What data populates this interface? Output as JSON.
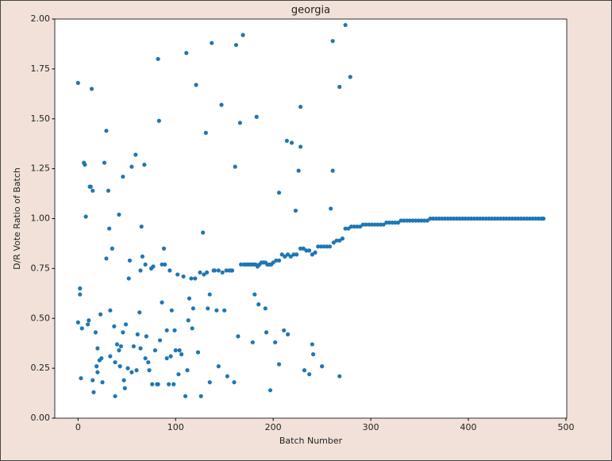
{
  "chart_data": {
    "type": "scatter",
    "title": "georgia",
    "xlabel": "Batch Number",
    "ylabel": "D/R Vote Ratio of Batch",
    "xlim": [
      -23.85,
      500.85
    ],
    "ylim": [
      0,
      2
    ],
    "xticks": [
      0,
      100,
      200,
      300,
      400,
      500
    ],
    "yticks": [
      {
        "value": 0,
        "label": "0.00"
      },
      {
        "value": 0.25,
        "label": "0.25"
      },
      {
        "value": 0.5,
        "label": "0.50"
      },
      {
        "value": 0.75,
        "label": "0.75"
      },
      {
        "value": 1,
        "label": "1.00"
      },
      {
        "value": 1.25,
        "label": "1.25"
      },
      {
        "value": 1.5,
        "label": "1.50"
      },
      {
        "value": 1.75,
        "label": "1.75"
      },
      {
        "value": 2,
        "label": "2.00"
      }
    ],
    "series": [
      {
        "color": "#1f77b4",
        "x": [
          0,
          2,
          2,
          0,
          3,
          4,
          6,
          7,
          8,
          10,
          11,
          12,
          13,
          14,
          15,
          15,
          16,
          18,
          19,
          20,
          20,
          22,
          23,
          24,
          25,
          27,
          29,
          29,
          31,
          32,
          33,
          33,
          35,
          37,
          38,
          38,
          40,
          42,
          42,
          43,
          44,
          46,
          46,
          47,
          48,
          49,
          51,
          52,
          53,
          55,
          55,
          57,
          59,
          60,
          61,
          63,
          64,
          64,
          65,
          66,
          68,
          69,
          69,
          70,
          72,
          73,
          75,
          76,
          77,
          79,
          81,
          82,
          82,
          83,
          84,
          86,
          86,
          88,
          89,
          91,
          91,
          93,
          94,
          95,
          96,
          98,
          99,
          100,
          102,
          103,
          104,
          106,
          108,
          110,
          111,
          112,
          113,
          114,
          116,
          117,
          118,
          120,
          121,
          123,
          125,
          126,
          128,
          129,
          131,
          132,
          133,
          135,
          135,
          137,
          139,
          140,
          142,
          144,
          144,
          147,
          148,
          150,
          152,
          153,
          155,
          157,
          158,
          160,
          161,
          162,
          164,
          166,
          167,
          169,
          179,
          181,
          183,
          185,
          192,
          193,
          197,
          198,
          202,
          206,
          206,
          211,
          214,
          215,
          219,
          223,
          226,
          228,
          228,
          232,
          237,
          240,
          241,
          250,
          259,
          261,
          261,
          268,
          268,
          274,
          279,
          170,
          172,
          174,
          176,
          178,
          180,
          182,
          184,
          186,
          188,
          190,
          192,
          194,
          196,
          200,
          203,
          206,
          209,
          212,
          215,
          218,
          221,
          224,
          228,
          231,
          234,
          237,
          240,
          243,
          246,
          249,
          252,
          255,
          258,
          262,
          265,
          268,
          271,
          274,
          277,
          280,
          283,
          286,
          289,
          292,
          295,
          298,
          301,
          304,
          307,
          310,
          313,
          316,
          319,
          322,
          325,
          328,
          331,
          334,
          337,
          340,
          343,
          346,
          349,
          352,
          355,
          358,
          361,
          364,
          367,
          370,
          373,
          376,
          379,
          382,
          385,
          388,
          391,
          394,
          397,
          400,
          403,
          406,
          409,
          412,
          415,
          418,
          421,
          424,
          427,
          430,
          433,
          436,
          439,
          442,
          445,
          448,
          451,
          454,
          457,
          460,
          463,
          466,
          469,
          472,
          475,
          477
        ],
        "values": [
          1.68,
          0.65,
          0.62,
          0.48,
          0.2,
          0.45,
          1.28,
          1.27,
          1.01,
          0.47,
          0.49,
          1.16,
          1.16,
          1.65,
          1.14,
          0.19,
          0.13,
          0.43,
          0.26,
          0.23,
          0.35,
          0.29,
          0.52,
          0.3,
          0.18,
          1.28,
          1.44,
          0.8,
          1.14,
          0.95,
          0.54,
          0.31,
          0.85,
          0.46,
          0.11,
          0.28,
          0.37,
          1.02,
          0.34,
          0.26,
          0.36,
          1.21,
          0.43,
          0.19,
          0.15,
          0.47,
          0.25,
          0.7,
          0.79,
          1.26,
          0.23,
          0.36,
          1.32,
          0.24,
          0.42,
          0.53,
          0.35,
          0.74,
          0.96,
          0.81,
          1.27,
          0.77,
          0.3,
          0.41,
          0.28,
          0.24,
          0.75,
          0.17,
          0.76,
          0.34,
          0.17,
          1.8,
          0.17,
          1.49,
          0.39,
          0.58,
          0.77,
          0.85,
          0.77,
          0.44,
          0.3,
          0.17,
          0.74,
          0.31,
          0.54,
          0.17,
          0.44,
          0.34,
          0.72,
          0.22,
          0.34,
          0.32,
          0.71,
          0.11,
          1.83,
          0.24,
          0.49,
          0.6,
          0.7,
          0.45,
          0.55,
          0.7,
          1.67,
          0.33,
          0.73,
          0.11,
          0.93,
          0.72,
          1.43,
          0.73,
          0.55,
          0.62,
          0.18,
          1.88,
          0.74,
          0.74,
          0.54,
          0.26,
          0.74,
          1.57,
          0.73,
          0.54,
          0.74,
          0.21,
          0.74,
          0.74,
          0.74,
          0.18,
          1.26,
          1.87,
          0.41,
          1.48,
          0.77,
          1.92,
          0.38,
          0.62,
          1.51,
          0.57,
          0.55,
          0.43,
          0.14,
          0.77,
          0.38,
          1.13,
          0.27,
          0.44,
          1.39,
          0.42,
          1.38,
          1.04,
          1.24,
          1.56,
          1.36,
          0.24,
          0.22,
          0.37,
          0.32,
          0.26,
          1.05,
          1.89,
          1.24,
          1.66,
          0.21,
          1.97,
          1.71,
          0.77,
          0.77,
          0.77,
          0.77,
          0.77,
          0.77,
          0.77,
          0.76,
          0.77,
          0.78,
          0.78,
          0.78,
          0.77,
          0.77,
          0.78,
          0.79,
          0.79,
          0.82,
          0.81,
          0.82,
          0.81,
          0.82,
          0.82,
          0.85,
          0.85,
          0.84,
          0.84,
          0.82,
          0.83,
          0.86,
          0.86,
          0.86,
          0.86,
          0.86,
          0.88,
          0.89,
          0.89,
          0.9,
          0.95,
          0.95,
          0.96,
          0.96,
          0.96,
          0.96,
          0.97,
          0.97,
          0.97,
          0.97,
          0.97,
          0.97,
          0.97,
          0.97,
          0.98,
          0.98,
          0.98,
          0.98,
          0.98,
          0.99,
          0.99,
          0.99,
          0.99,
          0.99,
          0.99,
          0.99,
          0.99,
          0.99,
          0.99,
          1,
          1,
          1,
          1,
          1,
          1,
          1,
          1,
          1,
          1,
          1,
          1,
          1,
          1,
          1,
          1,
          1,
          1,
          1,
          1,
          1,
          1,
          1,
          1,
          1,
          1,
          1,
          1,
          1,
          1,
          1,
          1,
          1,
          1,
          1,
          1,
          1,
          1,
          1,
          1
        ]
      }
    ]
  }
}
